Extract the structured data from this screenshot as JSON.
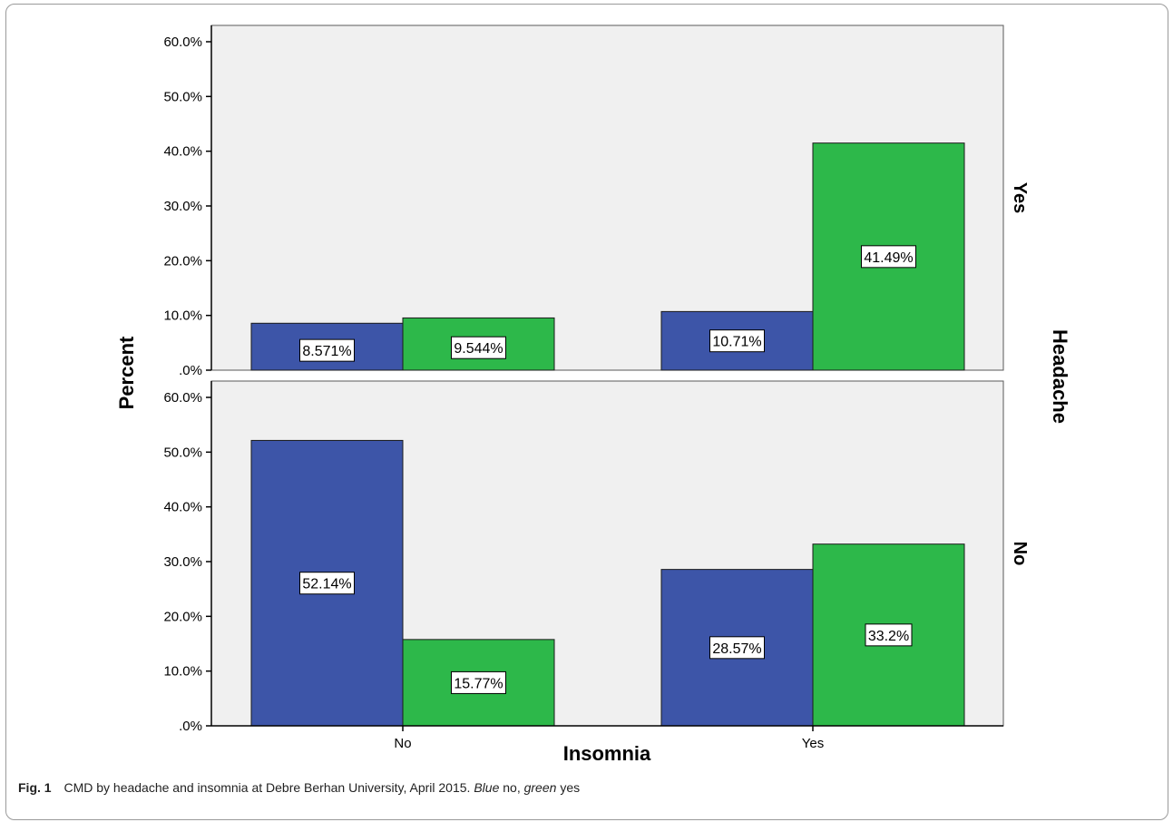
{
  "chart_data": {
    "type": "bar",
    "xlabel": "Insomnia",
    "ylabel": "Percent",
    "row_facet_label": "Headache",
    "categories": [
      "No",
      "Yes"
    ],
    "yticks": [
      ".0%",
      "10.0%",
      "20.0%",
      "30.0%",
      "40.0%",
      "50.0%",
      "60.0%"
    ],
    "ylim": [
      0,
      60
    ],
    "colors": {
      "cmd_no": "#3d55a8",
      "cmd_yes": "#2db84a"
    },
    "panels": [
      {
        "headache": "Yes",
        "series": [
          {
            "key": "cmd_no",
            "values": [
              8.571,
              10.71
            ],
            "labels": [
              "8.571%",
              "10.71%"
            ]
          },
          {
            "key": "cmd_yes",
            "values": [
              9.544,
              41.49
            ],
            "labels": [
              "9.544%",
              "41.49%"
            ]
          }
        ]
      },
      {
        "headache": "No",
        "series": [
          {
            "key": "cmd_no",
            "values": [
              52.14,
              28.57
            ],
            "labels": [
              "52.14%",
              "28.57%"
            ]
          },
          {
            "key": "cmd_yes",
            "values": [
              15.77,
              33.2
            ],
            "labels": [
              "15.77%",
              "33.2%"
            ]
          }
        ]
      }
    ]
  },
  "caption": {
    "fig_label": "Fig. 1",
    "text_main": "CMD by headache and insomnia at Debre Berhan University, April 2015.",
    "blue_word": "Blue",
    "blue_text": "no,",
    "green_word": "green",
    "green_text": "yes"
  }
}
